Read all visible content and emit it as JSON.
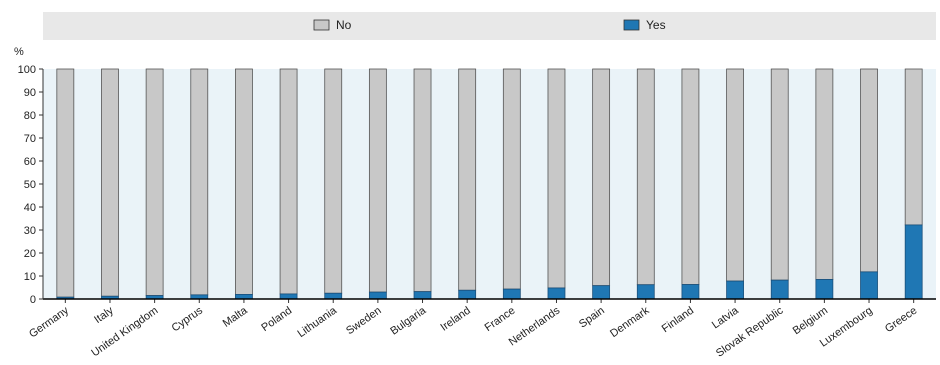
{
  "chart_data": {
    "type": "bar",
    "stacked": true,
    "ylabel": "%",
    "ylim": [
      0,
      100
    ],
    "yticks": [
      "0",
      "10",
      "20",
      "30",
      "40",
      "50",
      "60",
      "70",
      "80",
      "90",
      "100"
    ],
    "categories": [
      "Germany",
      "Italy",
      "United Kingdom",
      "Cyprus",
      "Malta",
      "Poland",
      "Lithuania",
      "Sweden",
      "Bulgaria",
      "Ireland",
      "France",
      "Netherlands",
      "Spain",
      "Denmark",
      "Finland",
      "Latvia",
      "Slovak Republic",
      "Belgium",
      "Luxembourg",
      "Greece"
    ],
    "series": [
      {
        "name": "Yes",
        "color": "#1f77b4",
        "values": [
          0.8,
          1.2,
          1.5,
          1.8,
          2.0,
          2.2,
          2.5,
          3.0,
          3.2,
          3.8,
          4.3,
          4.8,
          5.8,
          6.2,
          6.3,
          7.8,
          8.2,
          8.5,
          11.8,
          32.2
        ]
      },
      {
        "name": "No",
        "color": "#c8c8c8",
        "values": [
          99.2,
          98.8,
          98.5,
          98.2,
          98.0,
          97.8,
          97.5,
          97.0,
          96.8,
          96.2,
          95.7,
          95.2,
          94.2,
          93.8,
          93.7,
          92.2,
          91.8,
          91.5,
          88.2,
          67.8
        ]
      }
    ],
    "legend": {
      "position": "top",
      "entries": [
        "No",
        "Yes"
      ]
    },
    "grid": false,
    "plot_background": "#eaf3f8"
  }
}
